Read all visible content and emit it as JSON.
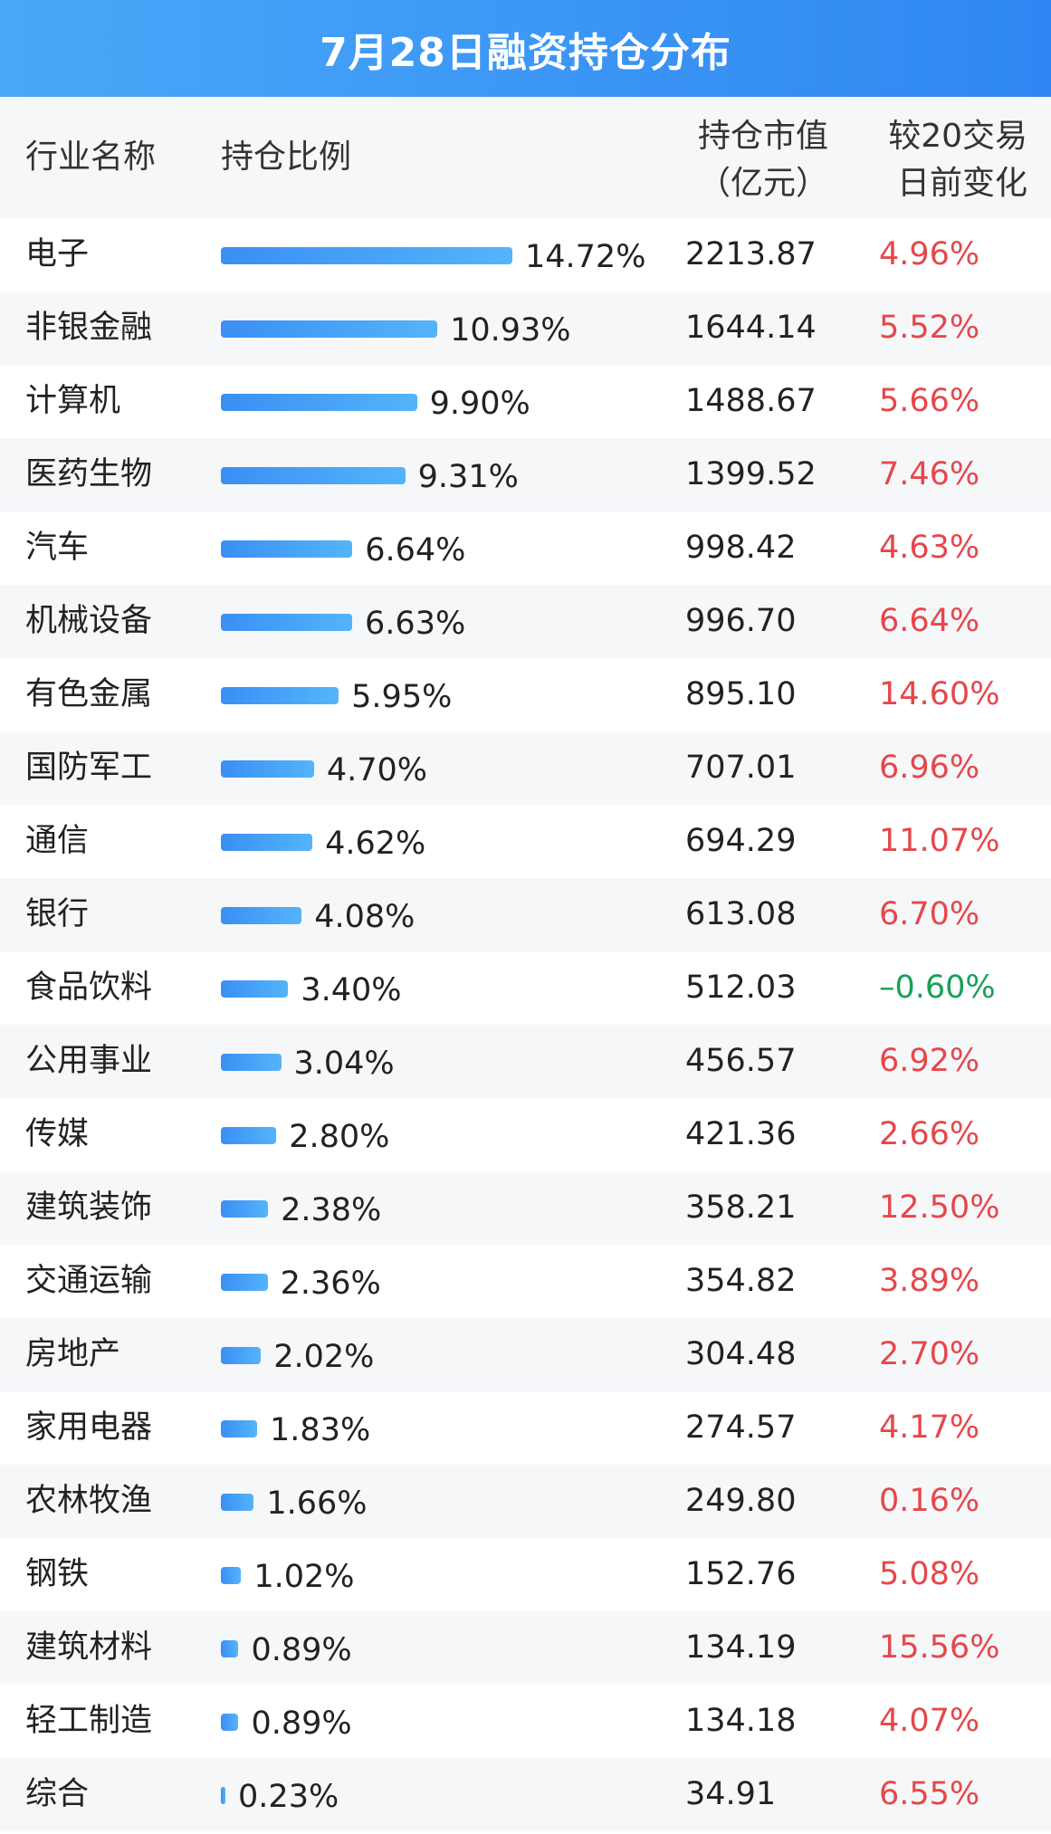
{
  "title": "7月28日融资持仓分布",
  "header": {
    "industry": "行业名称",
    "ratio": "持仓比例",
    "value_line1": "持仓市值",
    "value_line2": "（亿元）",
    "change_line1": "较20交易",
    "change_line2": "日前变化"
  },
  "colors": {
    "title_bg": "#3a93f5",
    "bar": "#3a8ff4",
    "positive": "#e5474b",
    "negative": "#18a058"
  },
  "chart_data": {
    "type": "table",
    "title": "7月28日融资持仓分布",
    "columns": [
      "行业名称",
      "持仓比例",
      "持仓市值（亿元）",
      "较20交易日前变化"
    ],
    "rows": [
      {
        "name": "电子",
        "ratio": 14.72,
        "ratio_label": "14.72%",
        "value": "2213.87",
        "change": 4.96,
        "change_label": "4.96%"
      },
      {
        "name": "非银金融",
        "ratio": 10.93,
        "ratio_label": "10.93%",
        "value": "1644.14",
        "change": 5.52,
        "change_label": "5.52%"
      },
      {
        "name": "计算机",
        "ratio": 9.9,
        "ratio_label": "9.90%",
        "value": "1488.67",
        "change": 5.66,
        "change_label": "5.66%"
      },
      {
        "name": "医药生物",
        "ratio": 9.31,
        "ratio_label": "9.31%",
        "value": "1399.52",
        "change": 7.46,
        "change_label": "7.46%"
      },
      {
        "name": "汽车",
        "ratio": 6.64,
        "ratio_label": "6.64%",
        "value": "998.42",
        "change": 4.63,
        "change_label": "4.63%"
      },
      {
        "name": "机械设备",
        "ratio": 6.63,
        "ratio_label": "6.63%",
        "value": "996.70",
        "change": 6.64,
        "change_label": "6.64%"
      },
      {
        "name": "有色金属",
        "ratio": 5.95,
        "ratio_label": "5.95%",
        "value": "895.10",
        "change": 14.6,
        "change_label": "14.60%"
      },
      {
        "name": "国防军工",
        "ratio": 4.7,
        "ratio_label": "4.70%",
        "value": "707.01",
        "change": 6.96,
        "change_label": "6.96%"
      },
      {
        "name": "通信",
        "ratio": 4.62,
        "ratio_label": "4.62%",
        "value": "694.29",
        "change": 11.07,
        "change_label": "11.07%"
      },
      {
        "name": "银行",
        "ratio": 4.08,
        "ratio_label": "4.08%",
        "value": "613.08",
        "change": 6.7,
        "change_label": "6.70%"
      },
      {
        "name": "食品饮料",
        "ratio": 3.4,
        "ratio_label": "3.40%",
        "value": "512.03",
        "change": -0.6,
        "change_label": "–0.60%"
      },
      {
        "name": "公用事业",
        "ratio": 3.04,
        "ratio_label": "3.04%",
        "value": "456.57",
        "change": 6.92,
        "change_label": "6.92%"
      },
      {
        "name": "传媒",
        "ratio": 2.8,
        "ratio_label": "2.80%",
        "value": "421.36",
        "change": 2.66,
        "change_label": "2.66%"
      },
      {
        "name": "建筑装饰",
        "ratio": 2.38,
        "ratio_label": "2.38%",
        "value": "358.21",
        "change": 12.5,
        "change_label": "12.50%"
      },
      {
        "name": "交通运输",
        "ratio": 2.36,
        "ratio_label": "2.36%",
        "value": "354.82",
        "change": 3.89,
        "change_label": "3.89%"
      },
      {
        "name": "房地产",
        "ratio": 2.02,
        "ratio_label": "2.02%",
        "value": "304.48",
        "change": 2.7,
        "change_label": "2.70%"
      },
      {
        "name": "家用电器",
        "ratio": 1.83,
        "ratio_label": "1.83%",
        "value": "274.57",
        "change": 4.17,
        "change_label": "4.17%"
      },
      {
        "name": "农林牧渔",
        "ratio": 1.66,
        "ratio_label": "1.66%",
        "value": "249.80",
        "change": 0.16,
        "change_label": "0.16%"
      },
      {
        "name": "钢铁",
        "ratio": 1.02,
        "ratio_label": "1.02%",
        "value": "152.76",
        "change": 5.08,
        "change_label": "5.08%"
      },
      {
        "name": "建筑材料",
        "ratio": 0.89,
        "ratio_label": "0.89%",
        "value": "134.19",
        "change": 15.56,
        "change_label": "15.56%"
      },
      {
        "name": "轻工制造",
        "ratio": 0.89,
        "ratio_label": "0.89%",
        "value": "134.18",
        "change": 4.07,
        "change_label": "4.07%"
      },
      {
        "name": "综合",
        "ratio": 0.23,
        "ratio_label": "0.23%",
        "value": "34.91",
        "change": 6.55,
        "change_label": "6.55%"
      }
    ]
  }
}
